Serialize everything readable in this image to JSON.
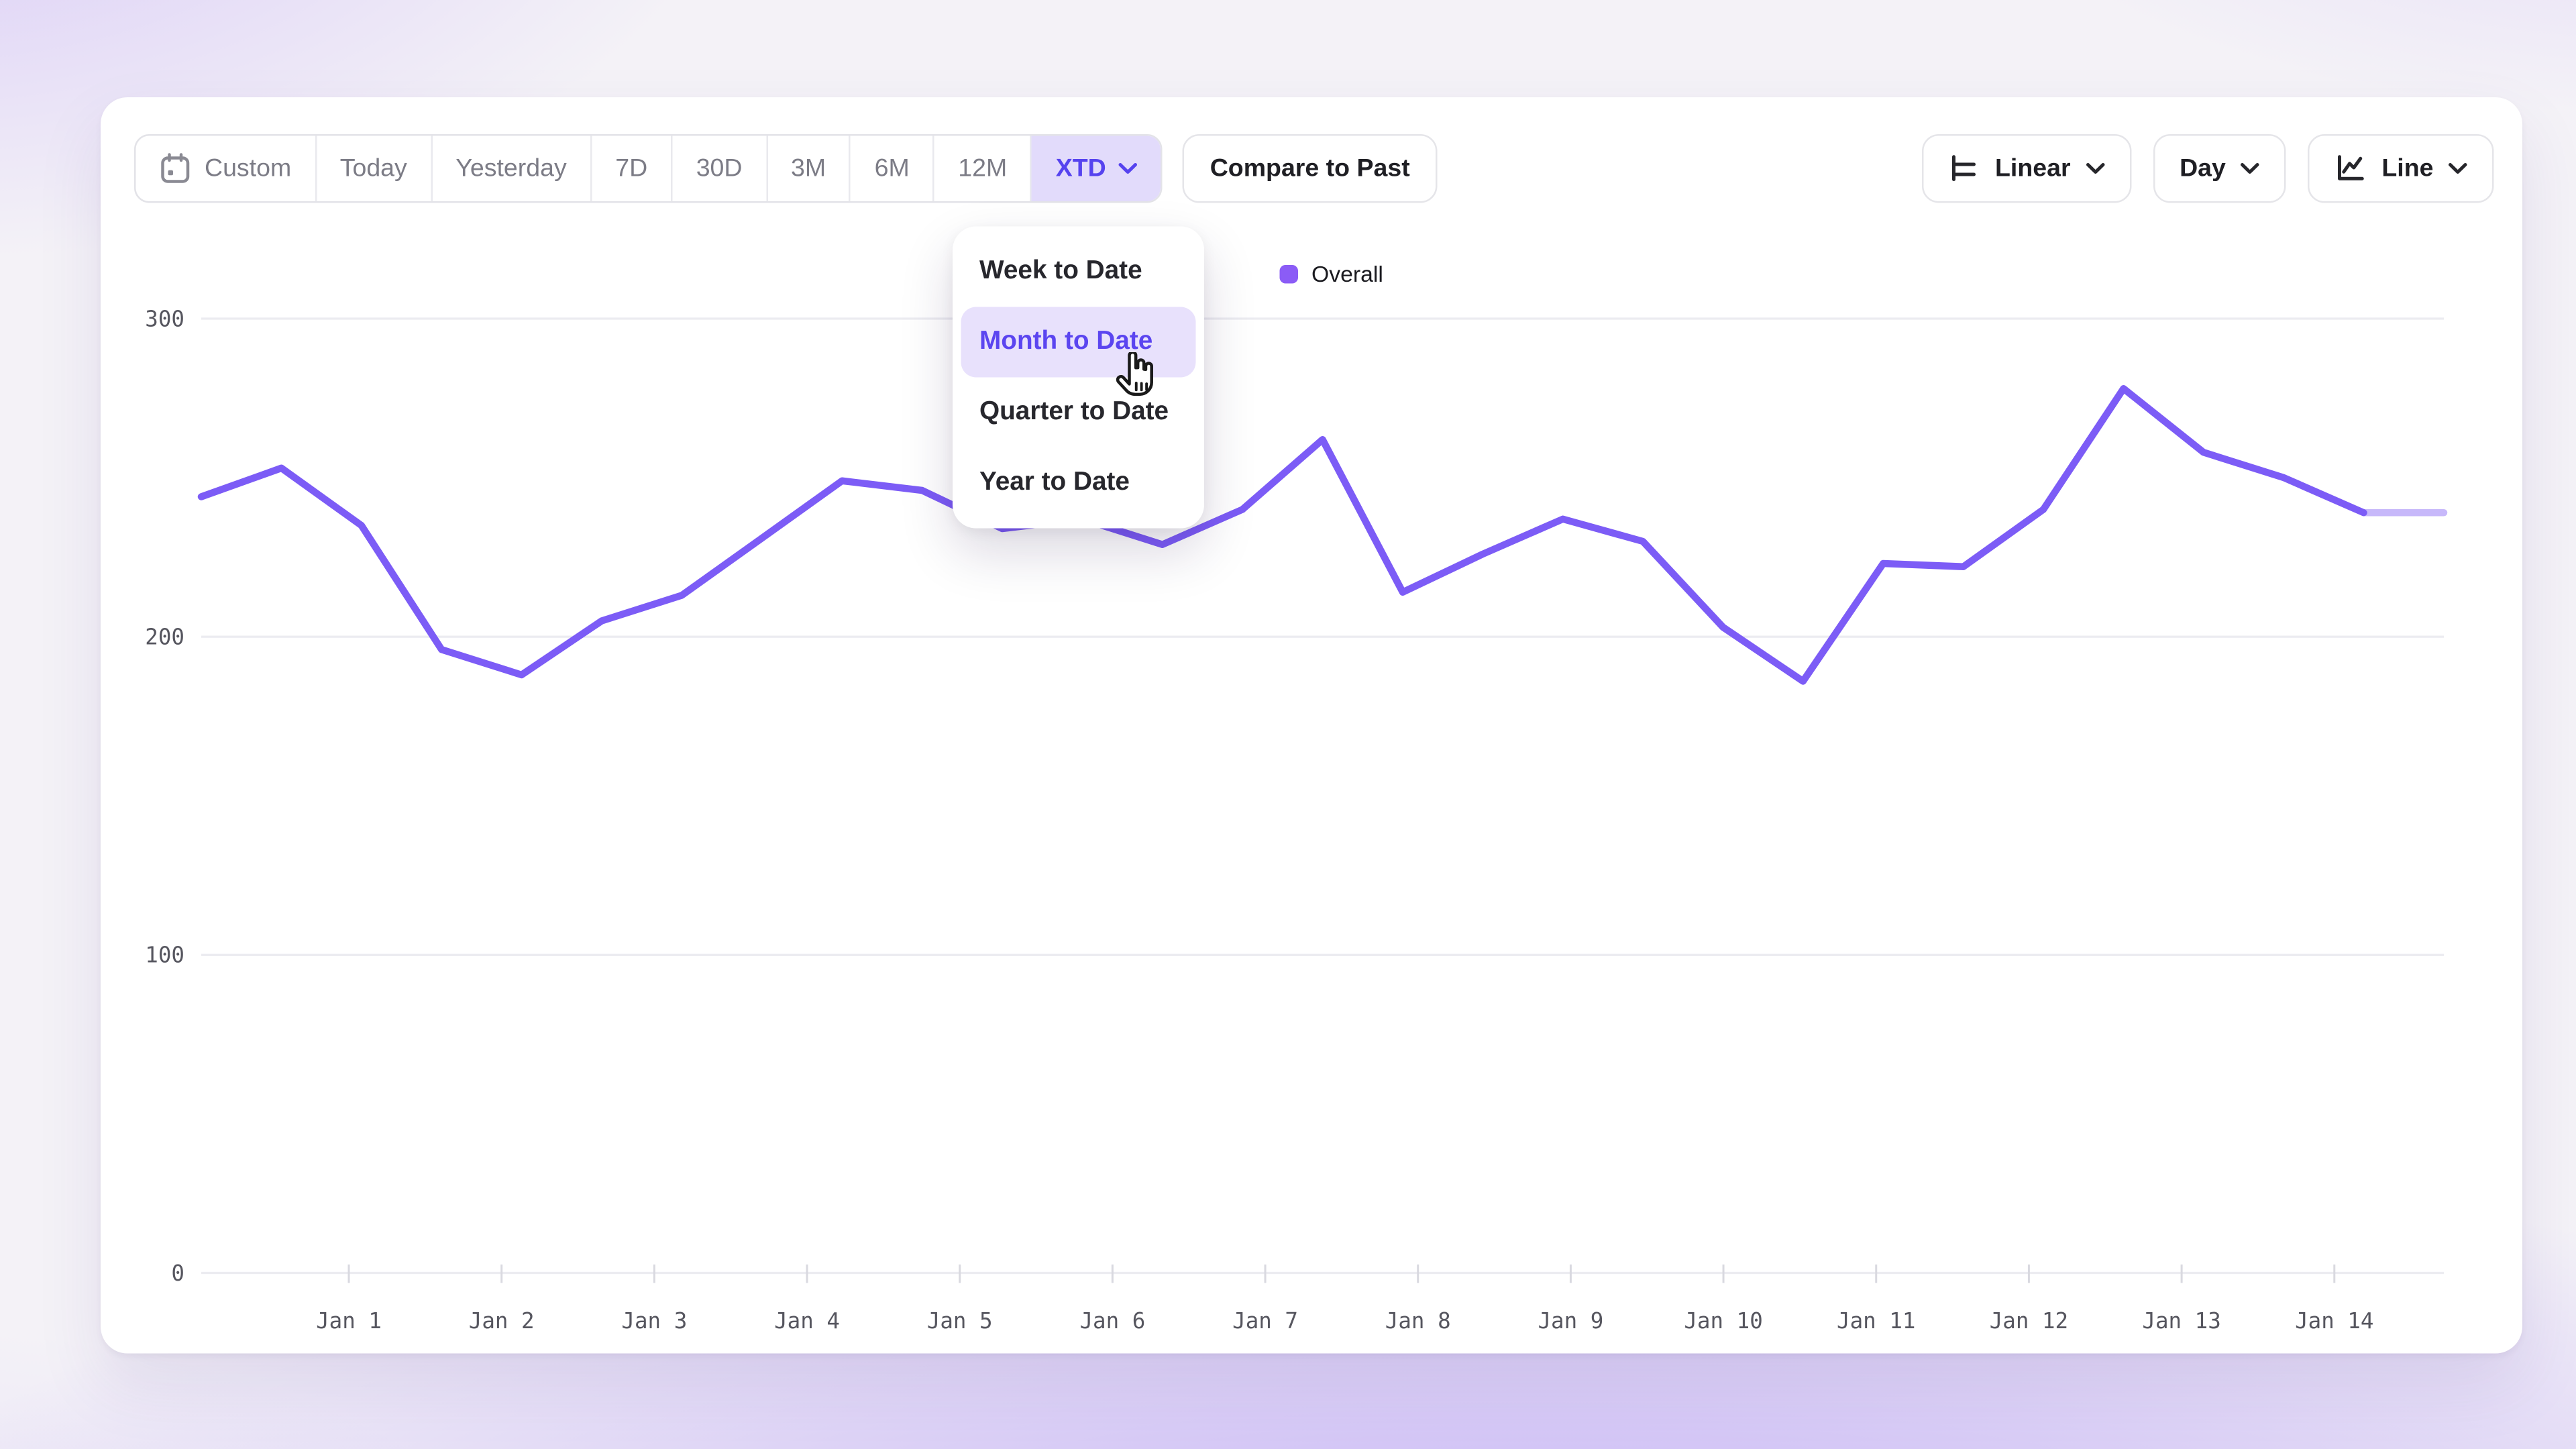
{
  "colors": {
    "accent": "#5b45f0",
    "line": "#7c5cf6",
    "line_faded": "#c7b8fa",
    "legend_swatch": "#8b5cf6",
    "grid": "#ececf1",
    "tick": "#d9d9e0",
    "axis_text": "#56565f",
    "selected_bg": "#e2dbfb",
    "selected_text": "#5643ef",
    "highlight_bg": "#e8e1fc",
    "highlight_text": "#5b45f0"
  },
  "toolbar": {
    "date_ranges": [
      "Custom",
      "Today",
      "Yesterday",
      "7D",
      "30D",
      "3M",
      "6M",
      "12M",
      "XTD"
    ],
    "selected_range": "XTD",
    "compare_button": "Compare to Past",
    "scale_button": "Linear",
    "interval_button": "Day",
    "chart_type_button": "Line",
    "icons": {
      "custom_range": "calendar-icon",
      "scale": "linear-scale-icon",
      "chart_type": "line-chart-icon",
      "dropdown_indicator": "chevron-down-icon"
    }
  },
  "dropdown": {
    "items": [
      "Week to Date",
      "Month to Date",
      "Quarter to Date",
      "Year to Date"
    ],
    "highlighted": "Month to Date"
  },
  "legend": {
    "series": "Overall"
  },
  "chart_data": {
    "type": "line",
    "title": "",
    "xlabel": "",
    "ylabel": "",
    "x_tick_labels": [
      "Jan 1",
      "Jan 2",
      "Jan 3",
      "Jan 4",
      "Jan 5",
      "Jan 6",
      "Jan 7",
      "Jan 8",
      "Jan 9",
      "Jan 10",
      "Jan 11",
      "Jan 12",
      "Jan 13",
      "Jan 14"
    ],
    "series": [
      {
        "name": "Overall",
        "values": [
          244,
          253,
          235,
          196,
          188,
          205,
          213,
          231,
          249,
          246,
          234,
          237,
          229,
          240,
          262,
          214,
          226,
          237,
          230,
          203,
          186,
          223,
          222,
          240,
          278,
          258,
          250,
          239,
          239
        ]
      }
    ],
    "points_per_x_tick": 2,
    "faded_from_index": 27,
    "ylim": [
      0,
      300
    ],
    "yticks": [
      0,
      100,
      200,
      300
    ],
    "grid": "horizontal",
    "legend_position": "top-center"
  }
}
